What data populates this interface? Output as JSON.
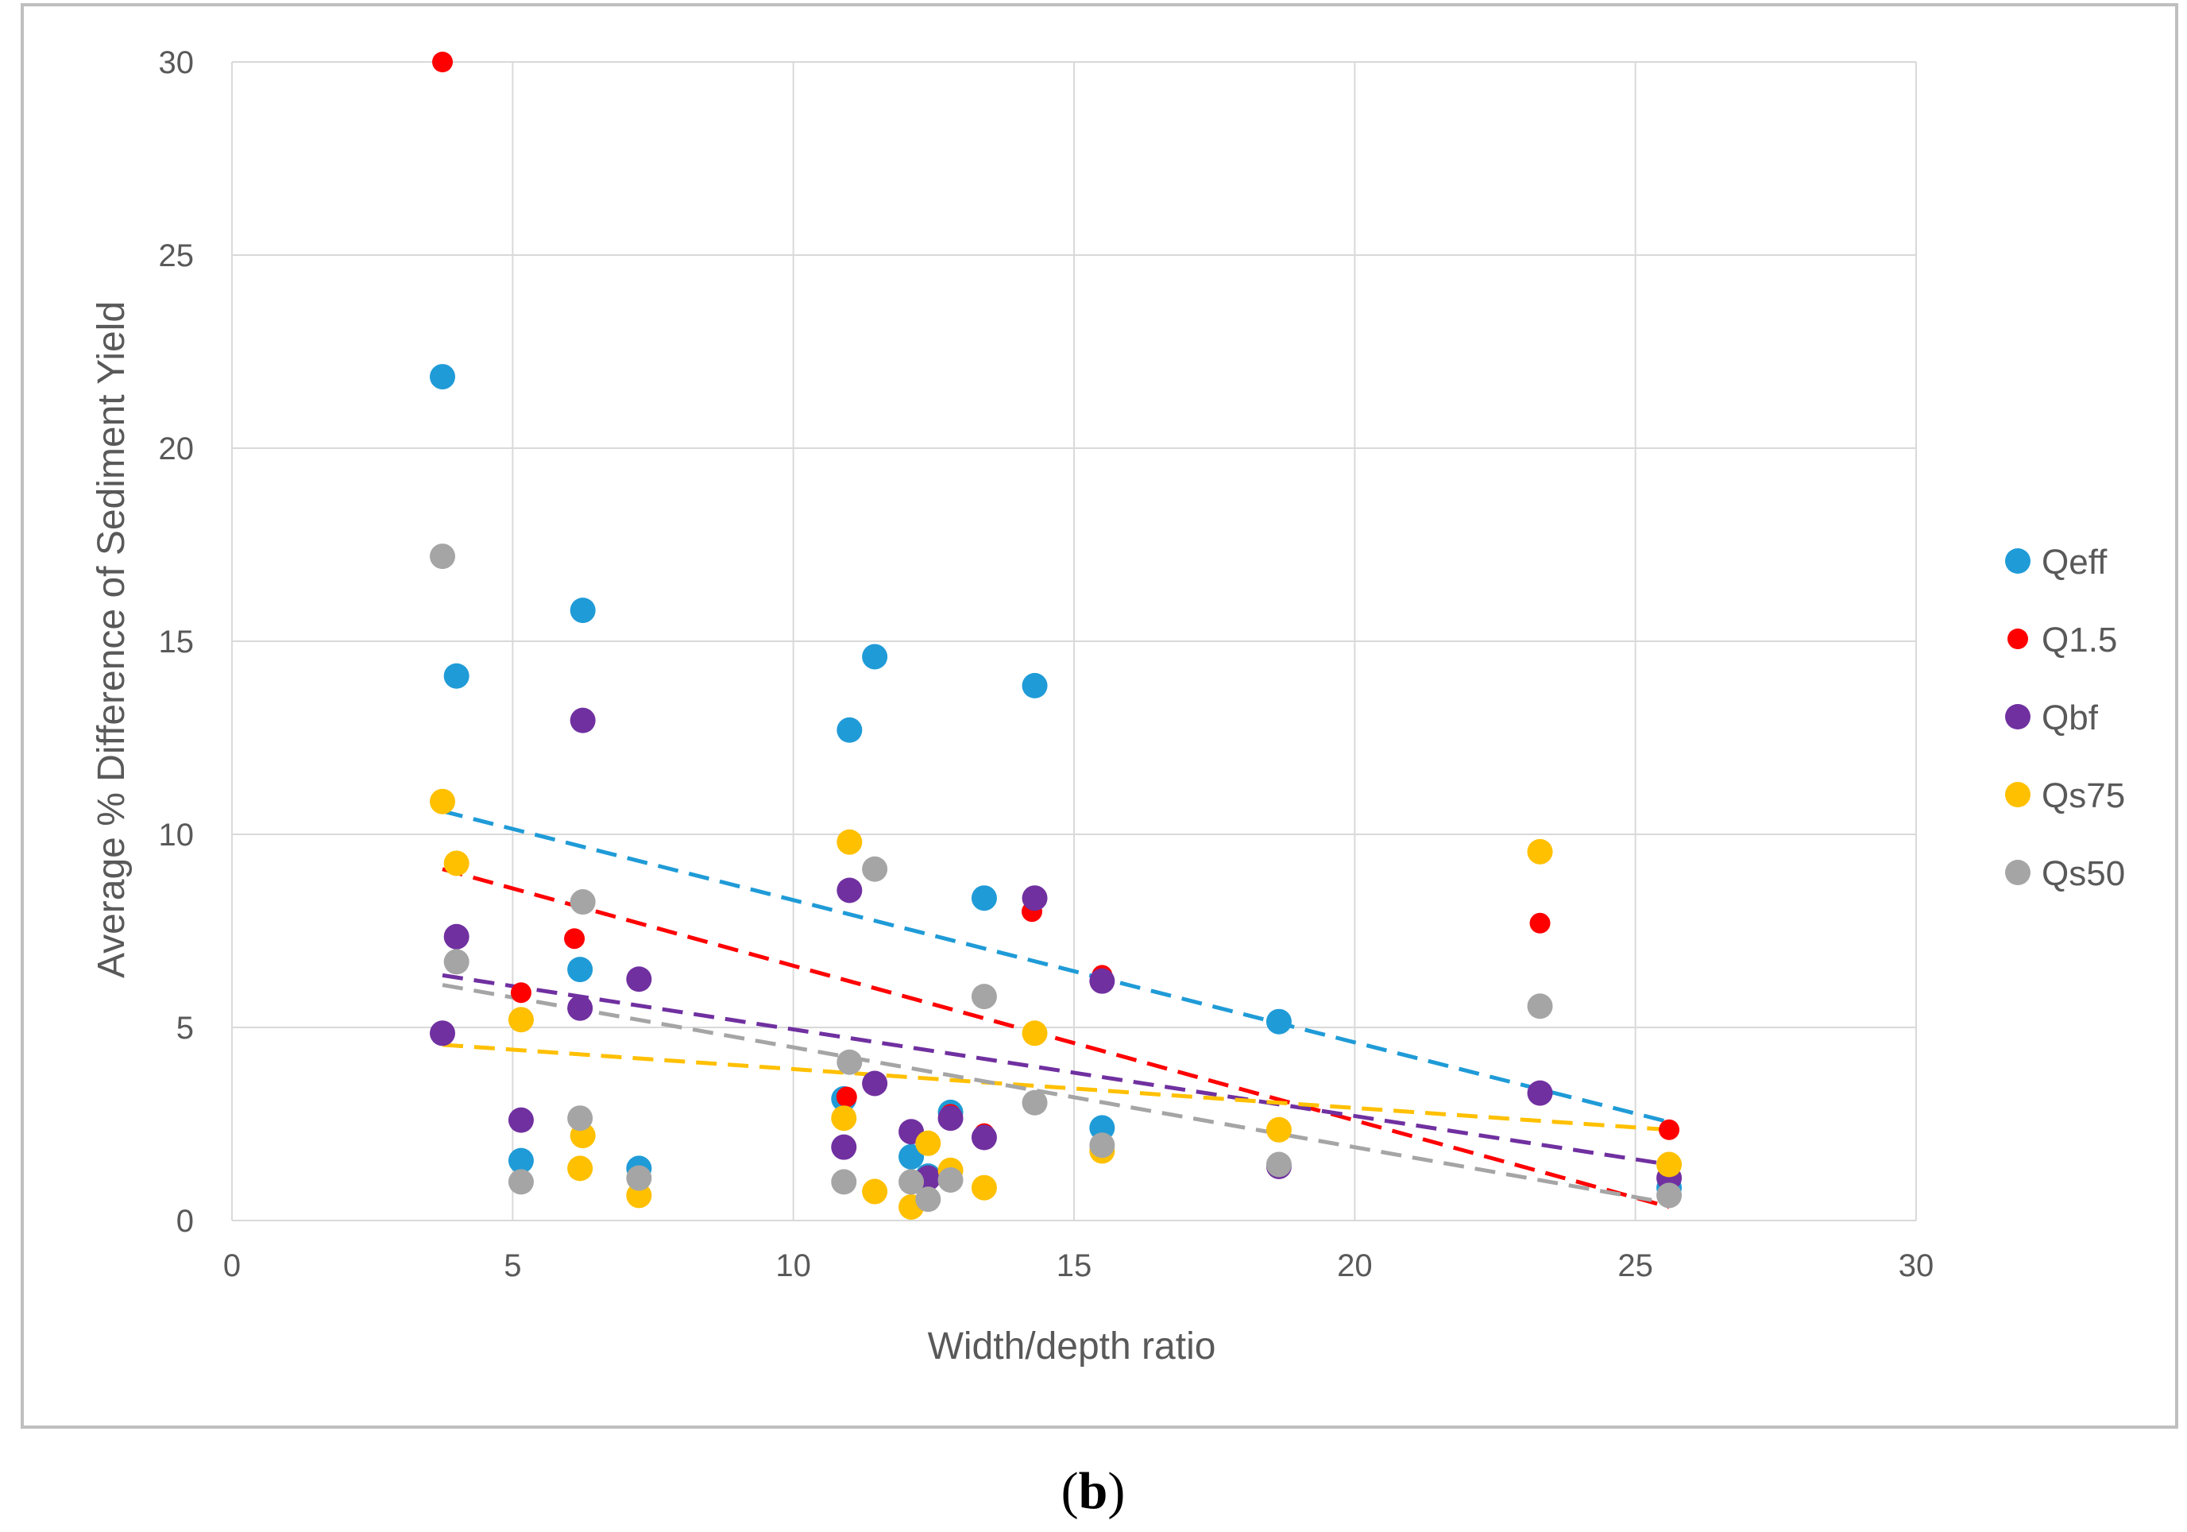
{
  "caption": {
    "open": "(",
    "letter": "b",
    "close": ")"
  },
  "chart_data": {
    "type": "scatter",
    "xlabel": "Width/depth ratio",
    "ylabel": "Average % Difference of Sediment Yield",
    "xlim": [
      0,
      30
    ],
    "ylim": [
      0,
      30
    ],
    "xticks": [
      "0",
      "5",
      "10",
      "15",
      "20",
      "25",
      "30"
    ],
    "yticks": [
      "0",
      "5",
      "10",
      "15",
      "20",
      "25",
      "30"
    ],
    "grid": true,
    "legend_position": "right",
    "series": [
      {
        "name": "Qeff",
        "color": "#1f9bd7",
        "marker": "large",
        "trendline": [
          [
            3.75,
            10.6
          ],
          [
            25.6,
            2.55
          ]
        ],
        "points": [
          [
            3.75,
            21.85
          ],
          [
            4.0,
            14.1
          ],
          [
            5.15,
            1.55
          ],
          [
            6.25,
            15.8
          ],
          [
            6.2,
            6.5
          ],
          [
            7.25,
            1.35
          ],
          [
            10.9,
            3.15
          ],
          [
            11.0,
            12.7
          ],
          [
            11.45,
            14.6
          ],
          [
            12.1,
            1.65
          ],
          [
            12.4,
            1.15
          ],
          [
            12.8,
            2.8
          ],
          [
            13.4,
            8.35
          ],
          [
            14.3,
            13.85
          ],
          [
            15.5,
            2.4
          ],
          [
            18.65,
            5.15
          ],
          [
            25.6,
            0.85
          ]
        ]
      },
      {
        "name": "Q1.5",
        "color": "#ff0000",
        "marker": "small",
        "trendline": [
          [
            3.75,
            9.1
          ],
          [
            25.6,
            0.35
          ]
        ],
        "points": [
          [
            3.75,
            30.0
          ],
          [
            5.15,
            5.9
          ],
          [
            6.1,
            7.3
          ],
          [
            10.95,
            3.2
          ],
          [
            12.8,
            2.75
          ],
          [
            13.4,
            2.25
          ],
          [
            14.25,
            8.0
          ],
          [
            15.5,
            6.35
          ],
          [
            23.3,
            7.7
          ],
          [
            25.6,
            2.35
          ]
        ]
      },
      {
        "name": "Qbf",
        "color": "#7030a0",
        "marker": "large",
        "trendline": [
          [
            3.75,
            6.35
          ],
          [
            25.6,
            1.45
          ]
        ],
        "points": [
          [
            3.75,
            4.85
          ],
          [
            4.0,
            7.35
          ],
          [
            5.15,
            2.6
          ],
          [
            6.2,
            5.5
          ],
          [
            6.25,
            12.95
          ],
          [
            7.25,
            6.25
          ],
          [
            10.9,
            1.9
          ],
          [
            11.0,
            8.55
          ],
          [
            11.45,
            3.55
          ],
          [
            12.1,
            2.3
          ],
          [
            12.4,
            1.1
          ],
          [
            12.8,
            2.65
          ],
          [
            13.4,
            2.15
          ],
          [
            14.3,
            8.35
          ],
          [
            15.5,
            6.2
          ],
          [
            18.65,
            1.4
          ],
          [
            23.3,
            3.3
          ],
          [
            25.6,
            1.1
          ]
        ]
      },
      {
        "name": "Qs75",
        "color": "#ffc000",
        "marker": "large",
        "trendline": [
          [
            3.75,
            4.55
          ],
          [
            25.6,
            2.35
          ]
        ],
        "points": [
          [
            3.75,
            10.85
          ],
          [
            4.0,
            9.25
          ],
          [
            5.15,
            5.2
          ],
          [
            6.2,
            1.35
          ],
          [
            6.25,
            2.2
          ],
          [
            7.25,
            0.65
          ],
          [
            10.9,
            2.65
          ],
          [
            11.0,
            9.8
          ],
          [
            11.45,
            0.75
          ],
          [
            12.1,
            0.35
          ],
          [
            12.4,
            2.0
          ],
          [
            12.8,
            1.3
          ],
          [
            13.4,
            0.85
          ],
          [
            14.3,
            4.85
          ],
          [
            15.5,
            1.8
          ],
          [
            18.65,
            2.35
          ],
          [
            23.3,
            9.55
          ],
          [
            25.6,
            1.45
          ]
        ]
      },
      {
        "name": "Qs50",
        "color": "#a5a5a5",
        "marker": "large",
        "trendline": [
          [
            3.75,
            6.1
          ],
          [
            25.6,
            0.45
          ]
        ],
        "points": [
          [
            3.75,
            17.2
          ],
          [
            4.0,
            6.7
          ],
          [
            5.15,
            1.0
          ],
          [
            6.2,
            2.65
          ],
          [
            6.25,
            8.25
          ],
          [
            7.25,
            1.1
          ],
          [
            10.9,
            1.0
          ],
          [
            11.0,
            4.1
          ],
          [
            11.45,
            9.1
          ],
          [
            12.1,
            1.0
          ],
          [
            12.4,
            0.55
          ],
          [
            12.8,
            1.05
          ],
          [
            13.4,
            5.8
          ],
          [
            14.3,
            3.05
          ],
          [
            15.5,
            1.95
          ],
          [
            18.65,
            1.45
          ],
          [
            23.3,
            5.55
          ],
          [
            25.6,
            0.65
          ]
        ]
      }
    ]
  }
}
